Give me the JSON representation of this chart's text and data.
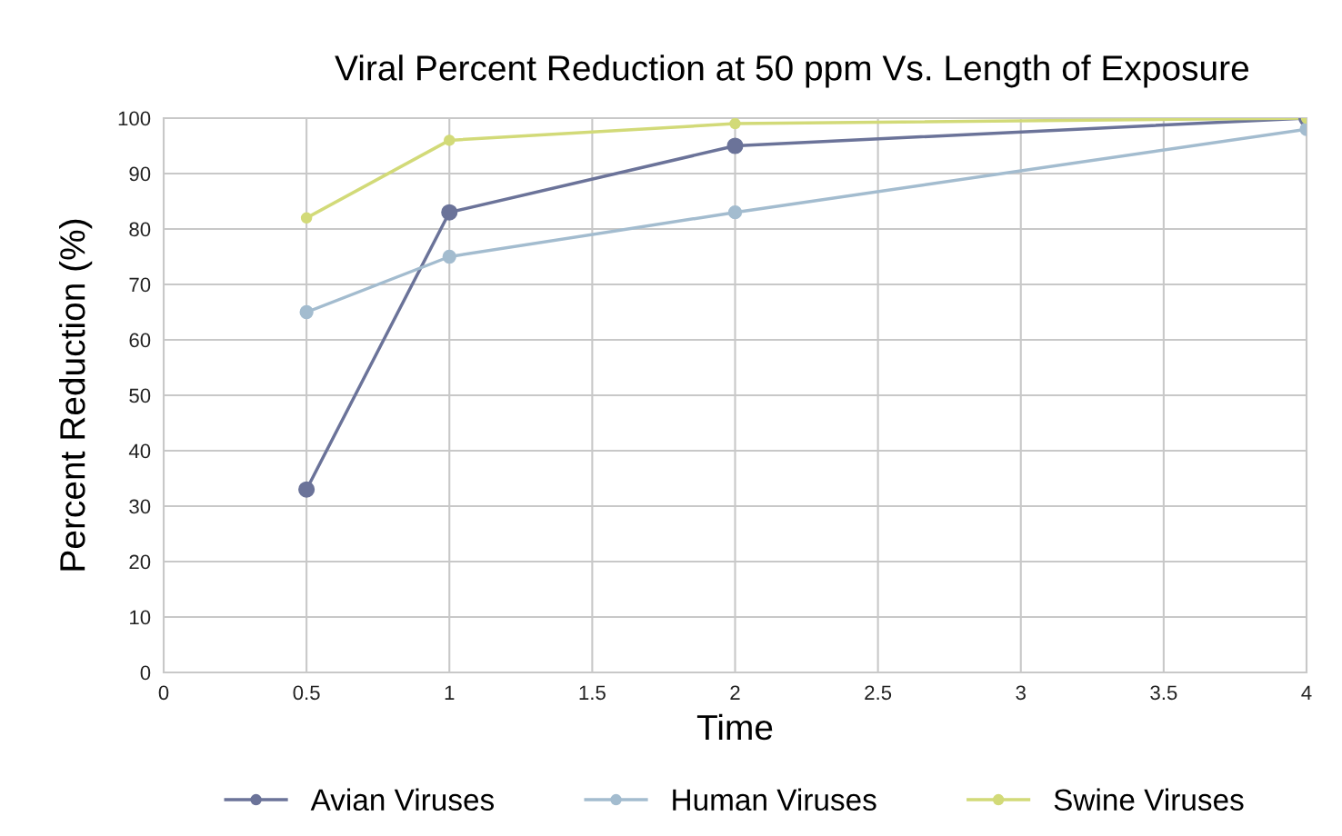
{
  "chart_data": {
    "type": "line",
    "title": "Viral Percent Reduction at 50 ppm Vs. Length of Exposure",
    "xlabel": "Time",
    "ylabel": "Percent Reduction (%)",
    "x": [
      0.5,
      1,
      2,
      4
    ],
    "series": [
      {
        "name": "Avian Viruses",
        "color": "#6b7399",
        "values": [
          33,
          83,
          95,
          100
        ]
      },
      {
        "name": "Human Viruses",
        "color": "#a3bccf",
        "values": [
          65,
          75,
          83,
          98
        ]
      },
      {
        "name": "Swine Viruses",
        "color": "#d2da78",
        "values": [
          82,
          96,
          99,
          100
        ]
      }
    ],
    "xlim": [
      0,
      4
    ],
    "xticks": [
      0,
      0.5,
      1,
      1.5,
      2,
      2.5,
      3,
      3.5,
      4
    ],
    "ylim": [
      0,
      100
    ],
    "yticks": [
      0,
      10,
      20,
      30,
      40,
      50,
      60,
      70,
      80,
      90,
      100
    ],
    "grid": true,
    "legend": "bottom",
    "marker": "circle",
    "line_style": "solid"
  }
}
